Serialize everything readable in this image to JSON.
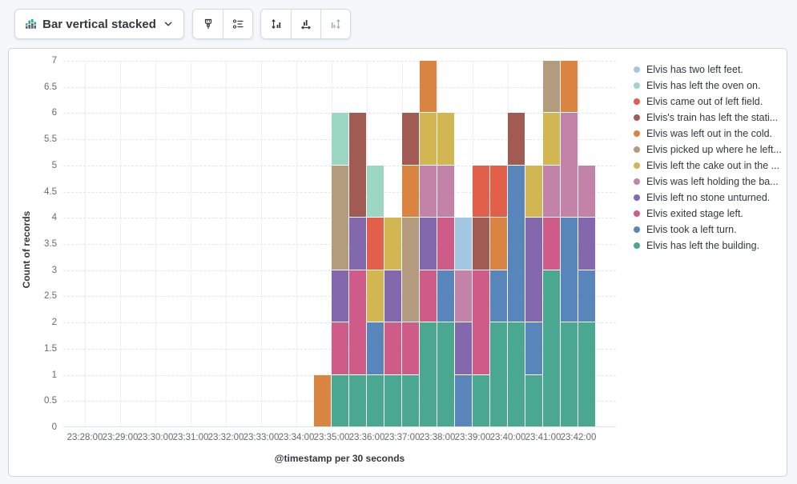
{
  "toolbar": {
    "chart_type_button": {
      "label": "Bar vertical stacked"
    },
    "visual_options_button": {
      "icon": "brush-icon",
      "disabled": false
    },
    "legend_button": {
      "icon": "legend-list-icon",
      "disabled": false
    },
    "left_axis_button": {
      "icon": "left-axis-icon",
      "disabled": false
    },
    "bottom_axis_button": {
      "icon": "bottom-axis-icon",
      "disabled": false
    },
    "right_axis_button": {
      "icon": "right-axis-icon",
      "disabled": true
    }
  },
  "chart_data": {
    "type": "bar",
    "mode": "vertical_stacked",
    "xlabel": "@timestamp per 30 seconds",
    "ylabel": "Count of records",
    "ylim": [
      0,
      7
    ],
    "grid": true,
    "legend_position": "right",
    "stack_order": "last_series_at_bottom",
    "x_axis_tick_labels": [
      "23:28:00",
      "23:29:00",
      "23:30:00",
      "23:31:00",
      "23:32:00",
      "23:33:00",
      "23:34:00",
      "23:35:00",
      "23:36:00",
      "23:37:00",
      "23:38:00",
      "23:39:00",
      "23:40:00",
      "23:41:00",
      "23:42:00"
    ],
    "y_axis_tick_labels": [
      "0",
      "0.5",
      "1",
      "1.5",
      "2",
      "2.5",
      "3",
      "3.5",
      "4",
      "4.5",
      "5",
      "5.5",
      "6",
      "6.5",
      "7"
    ],
    "categories": [
      "23:34:30",
      "23:35:00",
      "23:35:30",
      "23:36:00",
      "23:36:30",
      "23:37:00",
      "23:37:30",
      "23:38:00",
      "23:38:30",
      "23:39:00",
      "23:39:30",
      "23:40:00",
      "23:40:30",
      "23:41:00",
      "23:41:30",
      "23:42:00"
    ],
    "series": [
      {
        "name": "Elvis has two left feet.",
        "color": "#A4C7E1",
        "values": [
          0,
          0,
          0,
          0,
          0,
          0,
          0,
          0,
          1,
          0,
          0,
          0,
          0,
          0,
          0,
          0
        ]
      },
      {
        "name": "Elvis has left the oven on.",
        "color": "#9CD7C4",
        "values": [
          0,
          1,
          0,
          1,
          0,
          0,
          0,
          0,
          0,
          0,
          0,
          0,
          0,
          0,
          0,
          0
        ]
      },
      {
        "name": "Elvis came out of left field.",
        "color": "#E2604A",
        "values": [
          0,
          0,
          0,
          1,
          0,
          0,
          0,
          0,
          0,
          1,
          1,
          0,
          0,
          0,
          0,
          0
        ]
      },
      {
        "name": "Elvis's train has left the stati...",
        "color": "#A25B52",
        "values": [
          0,
          0,
          2,
          0,
          0,
          1,
          0,
          0,
          0,
          1,
          0,
          1,
          0,
          0,
          0,
          0
        ]
      },
      {
        "name": "Elvis was left out in the cold.",
        "color": "#D98441",
        "values": [
          1,
          0,
          0,
          0,
          0,
          1,
          1,
          0,
          0,
          0,
          1,
          0,
          0,
          0,
          1,
          0
        ]
      },
      {
        "name": "Elvis picked up where he left...",
        "color": "#B29C7D",
        "values": [
          0,
          2,
          0,
          0,
          0,
          2,
          0,
          0,
          0,
          0,
          0,
          0,
          0,
          1,
          0,
          0
        ]
      },
      {
        "name": "Elvis left the cake out in the ...",
        "color": "#D1B652",
        "values": [
          0,
          0,
          0,
          1,
          1,
          0,
          1,
          1,
          0,
          0,
          0,
          0,
          1,
          1,
          0,
          0
        ]
      },
      {
        "name": "Elvis was left holding the ba...",
        "color": "#C383A9",
        "values": [
          0,
          0,
          0,
          0,
          0,
          0,
          1,
          1,
          1,
          0,
          0,
          0,
          0,
          1,
          2,
          1
        ]
      },
      {
        "name": "Elvis left no stone unturned.",
        "color": "#8468AE",
        "values": [
          0,
          1,
          1,
          0,
          1,
          0,
          1,
          0,
          1,
          0,
          0,
          0,
          2,
          0,
          0,
          1
        ]
      },
      {
        "name": "Elvis exited stage left.",
        "color": "#CE5B88",
        "values": [
          0,
          1,
          2,
          0,
          1,
          1,
          1,
          1,
          0,
          2,
          0,
          0,
          0,
          1,
          0,
          0
        ]
      },
      {
        "name": "Elvis took a left turn.",
        "color": "#5886BB",
        "values": [
          0,
          0,
          0,
          1,
          0,
          0,
          0,
          1,
          1,
          0,
          1,
          3,
          1,
          0,
          2,
          1
        ]
      },
      {
        "name": "Elvis has left the building.",
        "color": "#4BA890",
        "values": [
          0,
          1,
          1,
          1,
          1,
          1,
          2,
          2,
          0,
          1,
          2,
          2,
          1,
          3,
          2,
          2
        ]
      }
    ]
  }
}
